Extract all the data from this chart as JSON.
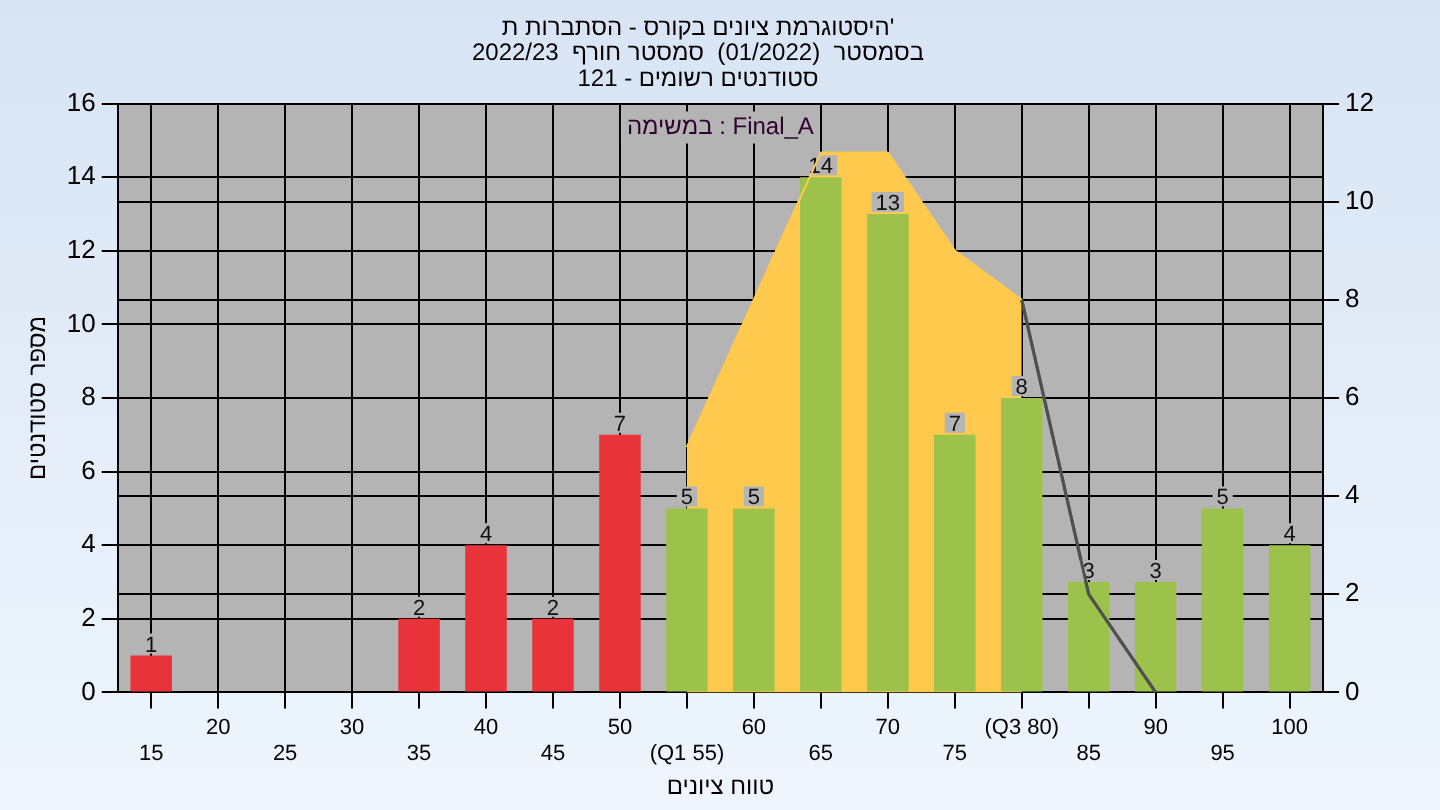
{
  "chart_data": {
    "type": "bar",
    "title": [
      "היסטוגרמת ציונים בקורס - הסתברות ת'",
      "בסמסטר  (01/2022)  סמסטר חורף  2022/23",
      "סטודנטים רשומים - 121"
    ],
    "xlabel": "טווח ציונים",
    "ylabel": "מספר סטודנטים",
    "categories": [
      "15",
      "20",
      "25",
      "30",
      "35",
      "40",
      "45",
      "50",
      "(Q1 55)",
      "60",
      "65",
      "70",
      "75",
      "(Q3 80)",
      "85",
      "90",
      "95",
      "100"
    ],
    "series": [
      {
        "type": "area",
        "axis": "y2",
        "color": "#ffc94d",
        "values": [
          null,
          null,
          null,
          null,
          null,
          null,
          null,
          null,
          5,
          8,
          11,
          11,
          9,
          8,
          null,
          null,
          null,
          null
        ]
      },
      {
        "type": "line",
        "axis": "y2",
        "color": "#505050",
        "values": [
          null,
          null,
          null,
          null,
          null,
          null,
          null,
          null,
          null,
          null,
          null,
          null,
          null,
          8,
          2,
          0,
          null,
          null
        ]
      },
      {
        "type": "bar",
        "colors": [
          "#e8333a",
          "#e8333a",
          "#e8333a",
          "#e8333a",
          "#e8333a",
          "#e8333a",
          "#e8333a",
          "#e8333a",
          "#9cc24c",
          "#9cc24c",
          "#9cc24c",
          "#9cc24c",
          "#9cc24c",
          "#9cc24c",
          "#9cc24c",
          "#9cc24c",
          "#9cc24c",
          "#9cc24c"
        ],
        "values": [
          1,
          0,
          0,
          0,
          2,
          4,
          2,
          7,
          5,
          5,
          14,
          13,
          7,
          8,
          3,
          3,
          5,
          4
        ],
        "value_labels": [
          "1",
          null,
          null,
          null,
          "2",
          "4",
          "2",
          "7",
          "5",
          "5",
          "14",
          "13",
          "7",
          "8",
          "3",
          "3",
          "5",
          "4"
        ]
      }
    ],
    "ylim": [
      0,
      16
    ],
    "yticks": [
      0,
      2,
      4,
      6,
      8,
      10,
      12,
      14,
      16
    ],
    "y2lim": [
      0,
      12
    ],
    "y2ticks": [
      0,
      2,
      4,
      6,
      8,
      10,
      12
    ],
    "annotations": [
      "במשימה : Final_A"
    ],
    "grid": true,
    "legend": false
  }
}
